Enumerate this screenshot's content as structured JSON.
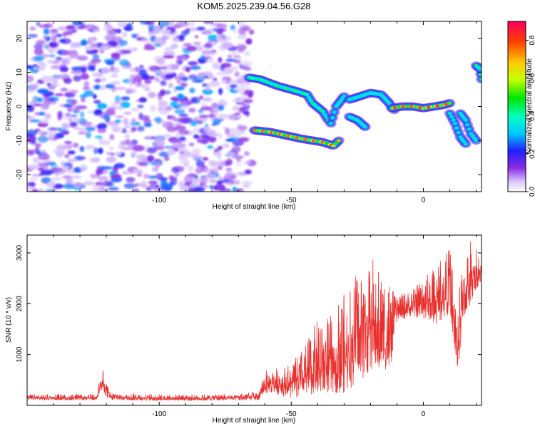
{
  "title": "KOM5.2025.239.04.56.G28",
  "chart_data": [
    {
      "type": "heatmap",
      "xlabel": "Height of straight line (km)",
      "ylabel": "Frequency (Hz)",
      "xlim": [
        -150,
        22
      ],
      "ylim": [
        -25,
        25
      ],
      "xticks": [
        -100,
        -50,
        0
      ],
      "yticks": [
        -20,
        -10,
        0,
        10,
        20
      ],
      "colorbar": {
        "label": "Normalized spectral amplitude",
        "range": [
          0.0,
          0.9
        ],
        "ticks": [
          0.0,
          0.2,
          0.4,
          0.6,
          0.8
        ]
      },
      "noise_region": {
        "x": [
          -150,
          -67
        ],
        "y": [
          -25,
          25
        ],
        "amplitude": [
          0.05,
          0.3
        ]
      },
      "ridges": [
        {
          "points": [
            [
              -66,
              8.5
            ],
            [
              -62,
              8
            ],
            [
              -55,
              6
            ],
            [
              -48,
              4.5
            ],
            [
              -44,
              3.5
            ],
            [
              -42,
              1
            ],
            [
              -38,
              -1.5
            ],
            [
              -36,
              -4
            ]
          ],
          "peak_amplitude": 0.45
        },
        {
          "points": [
            [
              -64,
              -7
            ],
            [
              -58,
              -7.5
            ],
            [
              -52,
              -8.5
            ],
            [
              -46,
              -9.5
            ],
            [
              -42,
              -10
            ],
            [
              -38,
              -10.5
            ],
            [
              -34,
              -11.5
            ],
            [
              -32,
              -10
            ]
          ],
          "peak_amplitude": 0.8
        },
        {
          "points": [
            [
              -35,
              -5
            ],
            [
              -33,
              0
            ],
            [
              -30,
              3
            ]
          ],
          "peak_amplitude": 0.3
        },
        {
          "points": [
            [
              -28,
              2
            ],
            [
              -24,
              3
            ],
            [
              -20,
              4
            ],
            [
              -16,
              3.5
            ],
            [
              -13,
              1
            ],
            [
              -11,
              -1
            ]
          ],
          "peak_amplitude": 0.35
        },
        {
          "points": [
            [
              -28,
              -3
            ],
            [
              -25,
              -4
            ],
            [
              -22,
              -6
            ]
          ],
          "peak_amplitude": 0.3
        },
        {
          "points": [
            [
              -12,
              -0.5
            ],
            [
              -8,
              0
            ],
            [
              -4,
              0
            ],
            [
              0,
              -0.5
            ],
            [
              4,
              0
            ],
            [
              8,
              0.5
            ],
            [
              10,
              1
            ]
          ],
          "peak_amplitude": 0.85
        },
        {
          "points": [
            [
              10,
              -2
            ],
            [
              12,
              -5
            ],
            [
              14,
              -9
            ],
            [
              16,
              -11
            ]
          ],
          "peak_amplitude": 0.25
        },
        {
          "points": [
            [
              14,
              -2
            ],
            [
              16,
              -4
            ],
            [
              18,
              -8
            ],
            [
              20,
              -10
            ]
          ],
          "peak_amplitude": 0.25
        },
        {
          "points": [
            [
              20,
              12
            ],
            [
              21.5,
              11
            ],
            [
              22,
              8
            ]
          ],
          "peak_amplitude": 0.45
        }
      ]
    },
    {
      "type": "line",
      "xlabel": "Height of straight line (km)",
      "ylabel": "SNR (10 * v/v)",
      "xlim": [
        -150,
        22
      ],
      "ylim": [
        0,
        3350
      ],
      "xticks": [
        -100,
        -50,
        0
      ],
      "yticks": [
        1000,
        2000,
        3000
      ],
      "series": [
        {
          "name": "SNR",
          "color": "#e8302e",
          "envelope": [
            [
              -150,
              100,
              220
            ],
            [
              -124,
              100,
              220
            ],
            [
              -122,
              250,
              650
            ],
            [
              -121,
              250,
              720
            ],
            [
              -120,
              150,
              450
            ],
            [
              -118,
              100,
              250
            ],
            [
              -100,
              90,
              220
            ],
            [
              -80,
              90,
              220
            ],
            [
              -62,
              100,
              260
            ],
            [
              -60,
              250,
              700
            ],
            [
              -55,
              200,
              750
            ],
            [
              -50,
              130,
              820
            ],
            [
              -45,
              180,
              1150
            ],
            [
              -40,
              250,
              1700
            ],
            [
              -35,
              250,
              1800
            ],
            [
              -30,
              250,
              2200
            ],
            [
              -25,
              400,
              2700
            ],
            [
              -20,
              700,
              3000
            ],
            [
              -15,
              700,
              2500
            ],
            [
              -12,
              600,
              2400
            ],
            [
              -11,
              1600,
              2150
            ],
            [
              -5,
              1750,
              2250
            ],
            [
              0,
              1700,
              2500
            ],
            [
              5,
              1600,
              2800
            ],
            [
              10,
              1800,
              3100
            ],
            [
              13,
              600,
              2000
            ],
            [
              15,
              1500,
              3000
            ],
            [
              18,
              2000,
              3320
            ],
            [
              20,
              2300,
              3150
            ],
            [
              22,
              2400,
              2900
            ]
          ]
        }
      ]
    }
  ]
}
